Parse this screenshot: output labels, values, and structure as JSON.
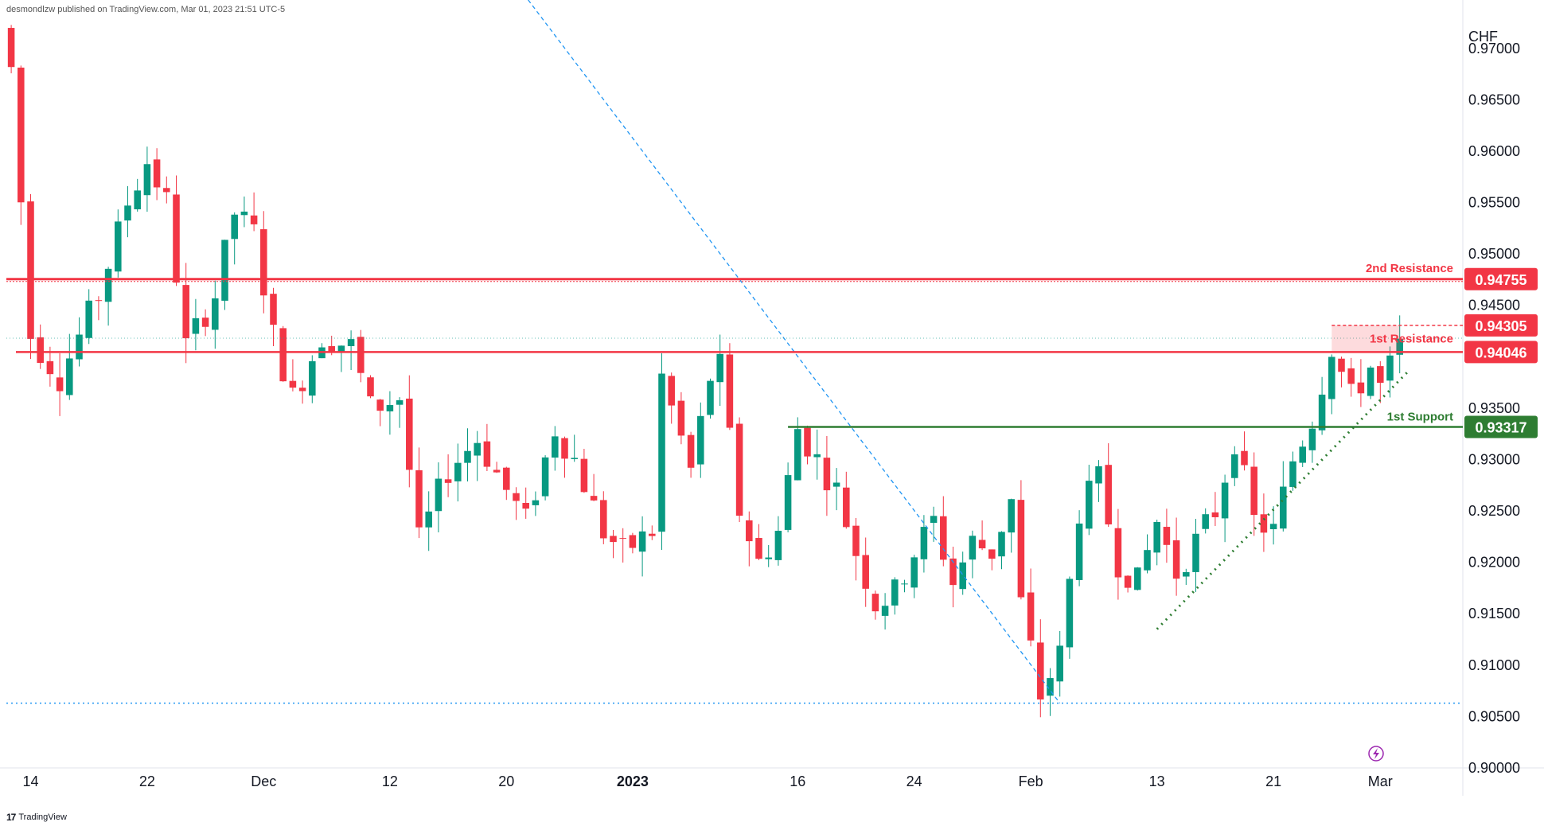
{
  "header": {
    "text": "desmondlzw published on TradingView.com, Mar 01, 2023 21:51 UTC-5"
  },
  "footer": {
    "logo": "17",
    "brand": "TradingView"
  },
  "chart_data": {
    "type": "candlestick",
    "currency_label": "CHF",
    "ylim": [
      0.9,
      0.973
    ],
    "y_ticks": [
      "0.97000",
      "0.96500",
      "0.96000",
      "0.95500",
      "0.95000",
      "0.94500",
      "0.93500",
      "0.93000",
      "0.92500",
      "0.92000",
      "0.91500",
      "0.91000",
      "0.90500",
      "0.90000"
    ],
    "x_ticks": [
      "14",
      "22",
      "Dec",
      "12",
      "20",
      "2023",
      "16",
      "24",
      "Feb",
      "13",
      "21",
      "Mar"
    ],
    "x_tick_bars": [
      2,
      14,
      26,
      39,
      51,
      64,
      81,
      93,
      105,
      118,
      130,
      141
    ],
    "bar_count": 150,
    "levels": [
      {
        "name": "2nd Resistance",
        "value": 0.94755,
        "label": "0.94755",
        "color": "#f23645"
      },
      {
        "name": "1st Resistance",
        "value": 0.94046,
        "label": "0.94046",
        "color": "#f23645"
      },
      {
        "name": "",
        "value": 0.94305,
        "label": "0.94305",
        "color": "#f23645"
      },
      {
        "name": "1st Support",
        "value": 0.93317,
        "label": "0.93317",
        "color": "#2e7d32"
      }
    ],
    "bottom_dotted_level": 0.9063,
    "colors": {
      "up": "#089981",
      "down": "#f23645",
      "resistance": "#f23645",
      "support": "#2e7d32",
      "trend": "#2196f3",
      "uptrend": "#2e7d32"
    },
    "anchors": [
      [
        0,
        0.968
      ],
      [
        2,
        0.942
      ],
      [
        5,
        0.938
      ],
      [
        9,
        0.946
      ],
      [
        12,
        0.955
      ],
      [
        14,
        0.959
      ],
      [
        16,
        0.955
      ],
      [
        18,
        0.941
      ],
      [
        21,
        0.946
      ],
      [
        23,
        0.954
      ],
      [
        25,
        0.952
      ],
      [
        27,
        0.942
      ],
      [
        29,
        0.936
      ],
      [
        32,
        0.942
      ],
      [
        35,
        0.941
      ],
      [
        37,
        0.935
      ],
      [
        40,
        0.936
      ],
      [
        42,
        0.922
      ],
      [
        45,
        0.929
      ],
      [
        48,
        0.932
      ],
      [
        51,
        0.927
      ],
      [
        53,
        0.924
      ],
      [
        56,
        0.933
      ],
      [
        58,
        0.93
      ],
      [
        61,
        0.923
      ],
      [
        63,
        0.921
      ],
      [
        66,
        0.923
      ],
      [
        67,
        0.938
      ],
      [
        70,
        0.929
      ],
      [
        72,
        0.938
      ],
      [
        73,
        0.939
      ],
      [
        75,
        0.925
      ],
      [
        77,
        0.92
      ],
      [
        79,
        0.923
      ],
      [
        81,
        0.933
      ],
      [
        83,
        0.93
      ],
      [
        85,
        0.927
      ],
      [
        87,
        0.921
      ],
      [
        89,
        0.916
      ],
      [
        91,
        0.917
      ],
      [
        93,
        0.921
      ],
      [
        95,
        0.924
      ],
      [
        97,
        0.918
      ],
      [
        99,
        0.922
      ],
      [
        101,
        0.921
      ],
      [
        103,
        0.926
      ],
      [
        104,
        0.916
      ],
      [
        106,
        0.907
      ],
      [
        108,
        0.911
      ],
      [
        110,
        0.925
      ],
      [
        112,
        0.928
      ],
      [
        114,
        0.92
      ],
      [
        116,
        0.918
      ],
      [
        118,
        0.924
      ],
      [
        120,
        0.919
      ],
      [
        122,
        0.922
      ],
      [
        124,
        0.925
      ],
      [
        126,
        0.932
      ],
      [
        128,
        0.924
      ],
      [
        130,
        0.923
      ],
      [
        132,
        0.93
      ],
      [
        134,
        0.934
      ],
      [
        136,
        0.941
      ],
      [
        138,
        0.936
      ],
      [
        140,
        0.939
      ],
      [
        141,
        0.937
      ],
      [
        143,
        0.941
      ]
    ]
  }
}
